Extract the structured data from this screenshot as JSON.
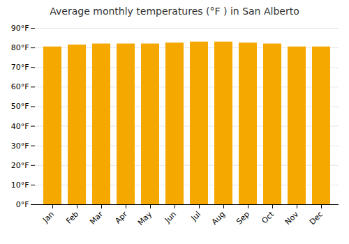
{
  "chart_data": {
    "type": "bar",
    "title": "Average monthly temperatures (°F ) in San Alberto",
    "categories": [
      "Jan",
      "Feb",
      "Mar",
      "Apr",
      "May",
      "Jun",
      "Jul",
      "Aug",
      "Sep",
      "Oct",
      "Nov",
      "Dec"
    ],
    "values": [
      80.5,
      81.5,
      82.0,
      82.0,
      82.0,
      82.5,
      83.0,
      83.0,
      82.5,
      82.0,
      80.5,
      80.5
    ],
    "color": "#F5A800",
    "ylim": [
      0,
      90
    ],
    "yticks": [
      {
        "value": 0,
        "label": "0°F"
      },
      {
        "value": 10,
        "label": "10°F"
      },
      {
        "value": 20,
        "label": "20°F"
      },
      {
        "value": 30,
        "label": "30°F"
      },
      {
        "value": 40,
        "label": "40°F"
      },
      {
        "value": 50,
        "label": "50°F"
      },
      {
        "value": 60,
        "label": "60°F"
      },
      {
        "value": 70,
        "label": "70°F"
      },
      {
        "value": 80,
        "label": "80°F"
      },
      {
        "value": 90,
        "label": "90°F"
      }
    ],
    "grid": true
  }
}
